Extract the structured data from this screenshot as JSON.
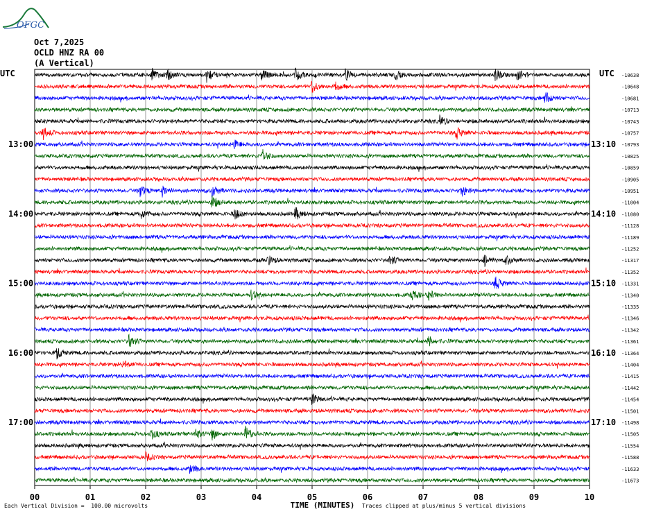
{
  "logo": {
    "text": "OFGC"
  },
  "header": {
    "date": "Oct 7,2025",
    "station": "OCLD HNZ RA 00",
    "component": "(A Vertical)"
  },
  "left_timezone": "UTC",
  "right_timezone": "UTC",
  "footer": {
    "scale_note": "Each Vertical Division =  100.00 microvolts",
    "clip_note": "Traces clipped at plus/minus 5 vertical divisions"
  },
  "colors": {
    "black": "#000000",
    "red": "#ff0000",
    "blue": "#0000ff",
    "green": "#006400",
    "grid": "#808080"
  },
  "chart_data": {
    "type": "line",
    "title": "",
    "xlabel": "TIME (MINUTES)",
    "ylabel": "",
    "x_ticks": [
      "00",
      "01",
      "02",
      "03",
      "04",
      "05",
      "06",
      "07",
      "08",
      "09",
      "10"
    ],
    "xlim": [
      0,
      10
    ],
    "minutes_per_line": 10,
    "trace_color_cycle": [
      "black",
      "red",
      "blue",
      "green"
    ],
    "left_hour_labels": [
      {
        "line": 6,
        "label": "13:00"
      },
      {
        "line": 12,
        "label": "14:00"
      },
      {
        "line": 18,
        "label": "15:00"
      },
      {
        "line": 24,
        "label": "16:00"
      },
      {
        "line": 30,
        "label": "17:00"
      }
    ],
    "right_hour_labels": [
      {
        "line": 6,
        "label": "13:10"
      },
      {
        "line": 12,
        "label": "14:10"
      },
      {
        "line": 18,
        "label": "15:10"
      },
      {
        "line": 24,
        "label": "16:10"
      },
      {
        "line": 30,
        "label": "17:10"
      }
    ],
    "trace_offsets": [
      "-10638",
      "-10648",
      "-10681",
      "-10713",
      "-10743",
      "-10757",
      "-10793",
      "-10825",
      "-10859",
      "-10905",
      "-10951",
      "-11004",
      "-11080",
      "-11128",
      "-11189",
      "-11252",
      "-11317",
      "-11352",
      "-11331",
      "-11340",
      "-11335",
      "-11346",
      "-11342",
      "-11361",
      "-11364",
      "-11404",
      "-11415",
      "-11442",
      "-11454",
      "-11501",
      "-11498",
      "-11505",
      "-11554",
      "-11588",
      "-11633",
      "-11673"
    ],
    "events": [
      {
        "line": 0,
        "minute": 2.1,
        "amp": 1.6
      },
      {
        "line": 0,
        "minute": 2.4,
        "amp": 1.4
      },
      {
        "line": 0,
        "minute": 3.1,
        "amp": 1.6
      },
      {
        "line": 0,
        "minute": 4.1,
        "amp": 1.7
      },
      {
        "line": 0,
        "minute": 4.7,
        "amp": 1.5
      },
      {
        "line": 0,
        "minute": 5.6,
        "amp": 1.3
      },
      {
        "line": 0,
        "minute": 6.5,
        "amp": 1.3
      },
      {
        "line": 0,
        "minute": 8.3,
        "amp": 1.4
      },
      {
        "line": 0,
        "minute": 8.7,
        "amp": 1.5
      },
      {
        "line": 1,
        "minute": 5.0,
        "amp": 1.6
      },
      {
        "line": 1,
        "minute": 5.4,
        "amp": 1.2
      },
      {
        "line": 2,
        "minute": 9.2,
        "amp": 1.7
      },
      {
        "line": 4,
        "minute": 7.3,
        "amp": 1.2
      },
      {
        "line": 5,
        "minute": 0.15,
        "amp": 1.6
      },
      {
        "line": 5,
        "minute": 7.6,
        "amp": 1.5
      },
      {
        "line": 6,
        "minute": 3.6,
        "amp": 1.1
      },
      {
        "line": 7,
        "minute": 4.1,
        "amp": 1.8
      },
      {
        "line": 10,
        "minute": 1.9,
        "amp": 1.5
      },
      {
        "line": 10,
        "minute": 2.3,
        "amp": 1.3
      },
      {
        "line": 10,
        "minute": 3.2,
        "amp": 1.6
      },
      {
        "line": 10,
        "minute": 7.7,
        "amp": 1.3
      },
      {
        "line": 11,
        "minute": 3.2,
        "amp": 1.6
      },
      {
        "line": 12,
        "minute": 1.9,
        "amp": 1.3
      },
      {
        "line": 12,
        "minute": 3.6,
        "amp": 1.5
      },
      {
        "line": 12,
        "minute": 4.7,
        "amp": 1.6
      },
      {
        "line": 16,
        "minute": 4.2,
        "amp": 1.3
      },
      {
        "line": 16,
        "minute": 6.4,
        "amp": 1.2
      },
      {
        "line": 16,
        "minute": 8.1,
        "amp": 1.5
      },
      {
        "line": 16,
        "minute": 8.5,
        "amp": 1.2
      },
      {
        "line": 18,
        "minute": 8.3,
        "amp": 1.7
      },
      {
        "line": 19,
        "minute": 3.9,
        "amp": 1.2
      },
      {
        "line": 19,
        "minute": 6.8,
        "amp": 1.5
      },
      {
        "line": 19,
        "minute": 7.1,
        "amp": 1.2
      },
      {
        "line": 23,
        "minute": 1.7,
        "amp": 1.6
      },
      {
        "line": 23,
        "minute": 7.1,
        "amp": 1.2
      },
      {
        "line": 24,
        "minute": 0.4,
        "amp": 1.4
      },
      {
        "line": 25,
        "minute": 1.6,
        "amp": 1.0
      },
      {
        "line": 28,
        "minute": 5.0,
        "amp": 1.4
      },
      {
        "line": 31,
        "minute": 2.1,
        "amp": 1.3
      },
      {
        "line": 31,
        "minute": 2.9,
        "amp": 1.2
      },
      {
        "line": 31,
        "minute": 3.2,
        "amp": 1.3
      },
      {
        "line": 31,
        "minute": 3.8,
        "amp": 1.8
      },
      {
        "line": 33,
        "minute": 2.0,
        "amp": 1.0
      },
      {
        "line": 34,
        "minute": 2.8,
        "amp": 1.1
      }
    ]
  }
}
